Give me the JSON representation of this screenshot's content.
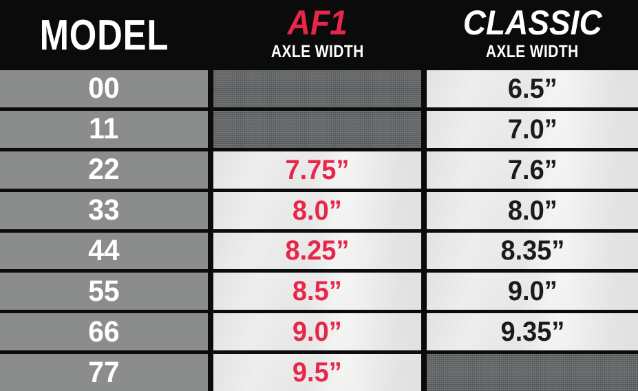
{
  "header": {
    "model_label": "MODEL",
    "af1_title": "AF1",
    "af1_subtitle": "AXLE WIDTH",
    "classic_title": "CLASSIC",
    "classic_subtitle": "AXLE WIDTH"
  },
  "rows": [
    {
      "model": "00",
      "af1": "",
      "classic": "6.5”"
    },
    {
      "model": "11",
      "af1": "",
      "classic": "7.0”"
    },
    {
      "model": "22",
      "af1": "7.75”",
      "classic": "7.6”"
    },
    {
      "model": "33",
      "af1": "8.0”",
      "classic": "8.0”"
    },
    {
      "model": "44",
      "af1": "8.25”",
      "classic": "8.35”"
    },
    {
      "model": "55",
      "af1": "8.5”",
      "classic": "9.0”"
    },
    {
      "model": "66",
      "af1": "9.0”",
      "classic": "9.35”"
    },
    {
      "model": "77",
      "af1": "9.5”",
      "classic": ""
    }
  ],
  "colors": {
    "accent_red": "#e8264a",
    "model_cell_gray": "#8b8d8d",
    "empty_cell_gray": "#6a6d6e",
    "paper_white": "#f5f5f4",
    "background_black": "#0b0b0c",
    "value_text_black": "#1b1b1b",
    "header_text_white": "#ffffff"
  },
  "chart_data": {
    "type": "table",
    "title": "Truck model axle width comparison: AF1 vs CLASSIC",
    "columns": [
      "MODEL",
      "AF1 AXLE WIDTH",
      "CLASSIC AXLE WIDTH"
    ],
    "rows": [
      [
        "00",
        null,
        "6.5”"
      ],
      [
        "11",
        null,
        "7.0”"
      ],
      [
        "22",
        "7.75”",
        "7.6”"
      ],
      [
        "33",
        "8.0”",
        "8.0”"
      ],
      [
        "44",
        "8.25”",
        "8.35”"
      ],
      [
        "55",
        "8.5”",
        "9.0”"
      ],
      [
        "66",
        "9.0”",
        "9.35”"
      ],
      [
        "77",
        "9.5”",
        null
      ]
    ],
    "notes": "Empty cells (AF1 for models 00/11, CLASSIC for model 77) are shown as dark gray hatched blocks meaning not available"
  }
}
